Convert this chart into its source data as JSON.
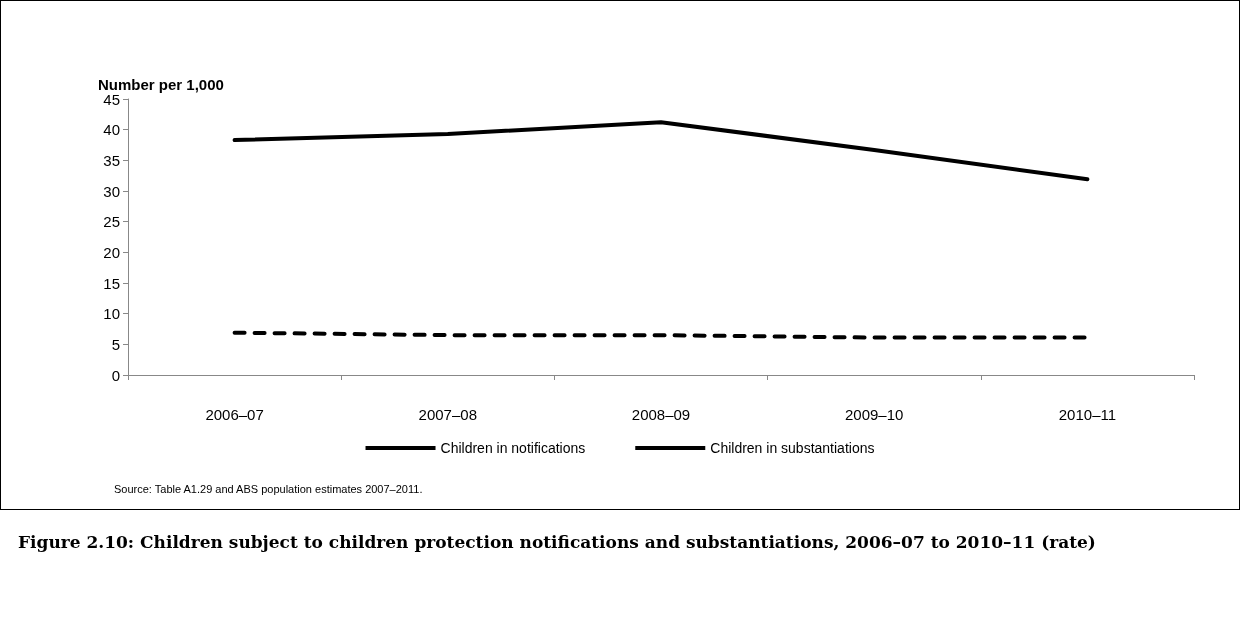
{
  "chart_data": {
    "type": "line",
    "title": "Figure 2.10: Children subject to children protection notifications and substantiations, 2006–07 to 2010–11 (rate)",
    "ylabel": "Number per 1,000",
    "categories": [
      "2006–07",
      "2007–08",
      "2008–09",
      "2009–10",
      "2010–11"
    ],
    "series": [
      {
        "name": "Children in notifications",
        "color": "#000000",
        "line_style": "solid",
        "values": [
          38.3,
          39.3,
          41.2,
          36.7,
          31.9
        ]
      },
      {
        "name": "Children in substantiations",
        "color": "#000000",
        "line_style": "dashed",
        "values": [
          6.9,
          6.5,
          6.5,
          6.1,
          6.1
        ]
      }
    ],
    "ylim": [
      0,
      45
    ],
    "yticks": [
      0,
      5,
      10,
      15,
      20,
      25,
      30,
      35,
      40,
      45
    ],
    "grid": false,
    "legend": "bottom",
    "marker": "none",
    "annotations": [
      "Source: Table A1.29 and ABS population estimates 2007–2011."
    ]
  }
}
